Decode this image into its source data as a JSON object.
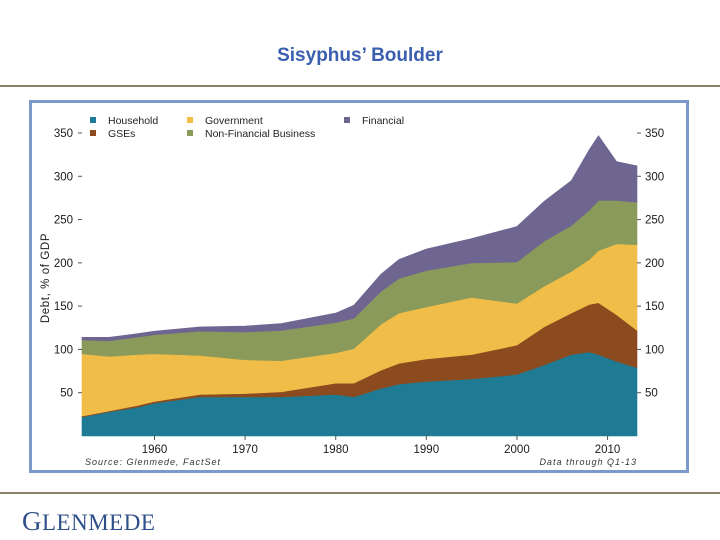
{
  "slide": {
    "title": "Sisyphus’ Boulder",
    "logo_text": "Glenmede"
  },
  "colors": {
    "household": "#1e7b93",
    "gses": "#8c4a1f",
    "government": "#f0be48",
    "non_financial_business": "#8a9a5b",
    "financial": "#6e6591",
    "frame": "#7d99c9",
    "title": "#3a5fae"
  },
  "chart_data": {
    "type": "area",
    "stacked": true,
    "title": "",
    "ylabel": "Debt, % of GDP",
    "xlabel": "",
    "ylim": [
      0,
      350
    ],
    "xlim": [
      1952,
      2013.25
    ],
    "yticks": [
      50,
      100,
      150,
      200,
      250,
      300,
      350
    ],
    "xticks": [
      1960,
      1970,
      1980,
      1990,
      2000,
      2010
    ],
    "source_note": "Source: Glenmede, FactSet",
    "date_note": "Data through Q1-13",
    "legend": [
      {
        "key": "household",
        "label": "Household"
      },
      {
        "key": "gses",
        "label": "GSEs"
      },
      {
        "key": "government",
        "label": "Government"
      },
      {
        "key": "non_financial_business",
        "label": "Non-Financial Business"
      },
      {
        "key": "financial",
        "label": "Financial"
      }
    ],
    "x": [
      1952,
      1955,
      1958,
      1960,
      1965,
      1970,
      1974,
      1980,
      1982,
      1985,
      1987,
      1990,
      1995,
      2000,
      2003,
      2006,
      2008,
      2009,
      2011,
      2013.25
    ],
    "series": [
      {
        "key": "household",
        "name": "Household",
        "values": [
          22,
          28,
          33,
          38,
          45,
          45,
          45,
          48,
          45,
          55,
          60,
          63,
          66,
          71,
          82,
          94,
          97,
          94,
          86,
          79
        ]
      },
      {
        "key": "gses",
        "name": "GSEs",
        "values": [
          1,
          1,
          2,
          2,
          3,
          4,
          6,
          13,
          16,
          21,
          24,
          26,
          28,
          34,
          44,
          48,
          55,
          60,
          54,
          43
        ]
      },
      {
        "key": "government",
        "name": "Government",
        "values": [
          72,
          63,
          59,
          55,
          45,
          39,
          36,
          35,
          40,
          53,
          58,
          60,
          66,
          48,
          47,
          48,
          52,
          60,
          82,
          99
        ]
      },
      {
        "key": "non_financial_business",
        "name": "Non-Financial Business",
        "values": [
          16,
          18,
          20,
          22,
          28,
          32,
          35,
          35,
          35,
          38,
          40,
          42,
          40,
          48,
          52,
          53,
          57,
          58,
          50,
          49
        ]
      },
      {
        "key": "financial",
        "name": "Financial",
        "values": [
          3,
          4,
          4,
          4,
          5,
          7,
          8,
          11,
          15,
          20,
          22,
          25,
          28,
          41,
          46,
          52,
          70,
          75,
          45,
          42
        ]
      }
    ]
  }
}
